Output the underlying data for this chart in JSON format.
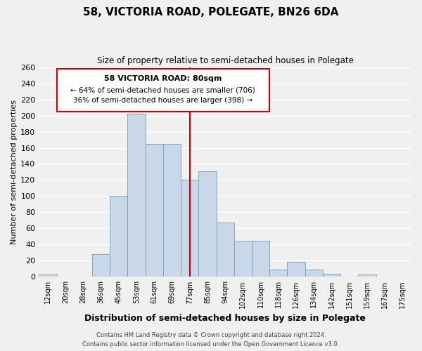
{
  "title": "58, VICTORIA ROAD, POLEGATE, BN26 6DA",
  "subtitle": "Size of property relative to semi-detached houses in Polegate",
  "xlabel": "Distribution of semi-detached houses by size in Polegate",
  "ylabel": "Number of semi-detached properties",
  "footer_line1": "Contains HM Land Registry data © Crown copyright and database right 2024.",
  "footer_line2": "Contains public sector information licensed under the Open Government Licence v3.0.",
  "bins": [
    "12sqm",
    "20sqm",
    "28sqm",
    "36sqm",
    "45sqm",
    "53sqm",
    "61sqm",
    "69sqm",
    "77sqm",
    "85sqm",
    "94sqm",
    "102sqm",
    "110sqm",
    "118sqm",
    "126sqm",
    "134sqm",
    "142sqm",
    "151sqm",
    "159sqm",
    "167sqm",
    "175sqm"
  ],
  "values": [
    3,
    0,
    0,
    28,
    100,
    202,
    165,
    165,
    120,
    131,
    67,
    45,
    45,
    9,
    19,
    9,
    4,
    0,
    3,
    0,
    0
  ],
  "bar_color": "#c8d8e8",
  "bar_edge_color": "#7a9ab5",
  "marker_bin_index": 8,
  "marker_color": "#cc0000",
  "annotation_title": "58 VICTORIA ROAD: 80sqm",
  "annotation_line1": "← 64% of semi-detached houses are smaller (706)",
  "annotation_line2": "36% of semi-detached houses are larger (398) →",
  "annotation_box_color": "#ffffff",
  "annotation_box_edge": "#cc0000",
  "ylim": [
    0,
    260
  ],
  "yticks": [
    0,
    20,
    40,
    60,
    80,
    100,
    120,
    140,
    160,
    180,
    200,
    220,
    240,
    260
  ],
  "background_color": "#f0f0f0",
  "grid_color": "#ffffff"
}
